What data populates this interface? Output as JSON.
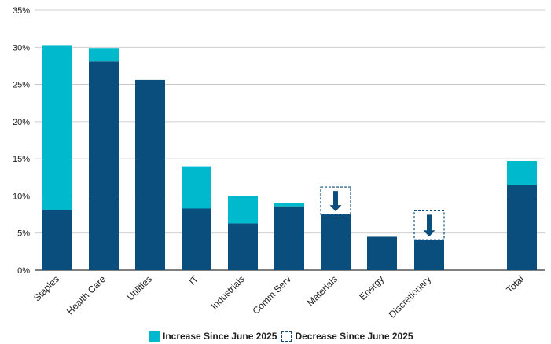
{
  "chart_data": {
    "type": "bar",
    "stacked": true,
    "categories": [
      "Staples",
      "Health Care",
      "Utilities",
      "IT",
      "Industrials",
      "Comm Serv",
      "Materials",
      "Energy",
      "Discretionary",
      "Total"
    ],
    "series": [
      {
        "name": "",
        "values": [
          8.1,
          28.1,
          25.6,
          8.3,
          6.3,
          8.6,
          7.5,
          4.5,
          4.1,
          11.5
        ]
      },
      {
        "name": "Increase Since June 2025",
        "values": [
          22.2,
          1.8,
          0,
          5.7,
          3.7,
          0.4,
          0,
          0,
          0,
          3.2
        ]
      },
      {
        "name": "Decrease Since June 2025",
        "values": [
          0,
          0,
          0,
          0,
          0,
          0,
          3.7,
          0,
          3.9,
          0
        ]
      }
    ],
    "ylim": [
      0,
      35
    ],
    "yticks": [
      "0%",
      "5%",
      "10%",
      "15%",
      "20%",
      "25%",
      "30%",
      "35%"
    ],
    "grid": true,
    "legend_position": "bottom",
    "colors": {
      "base": "#0a4e7d",
      "increase": "#00b9cc",
      "decrease_outline": "#0a4e7d"
    }
  },
  "legend": {
    "increase_label": "Increase Since June 2025",
    "decrease_label": "Decrease Since June 2025"
  }
}
